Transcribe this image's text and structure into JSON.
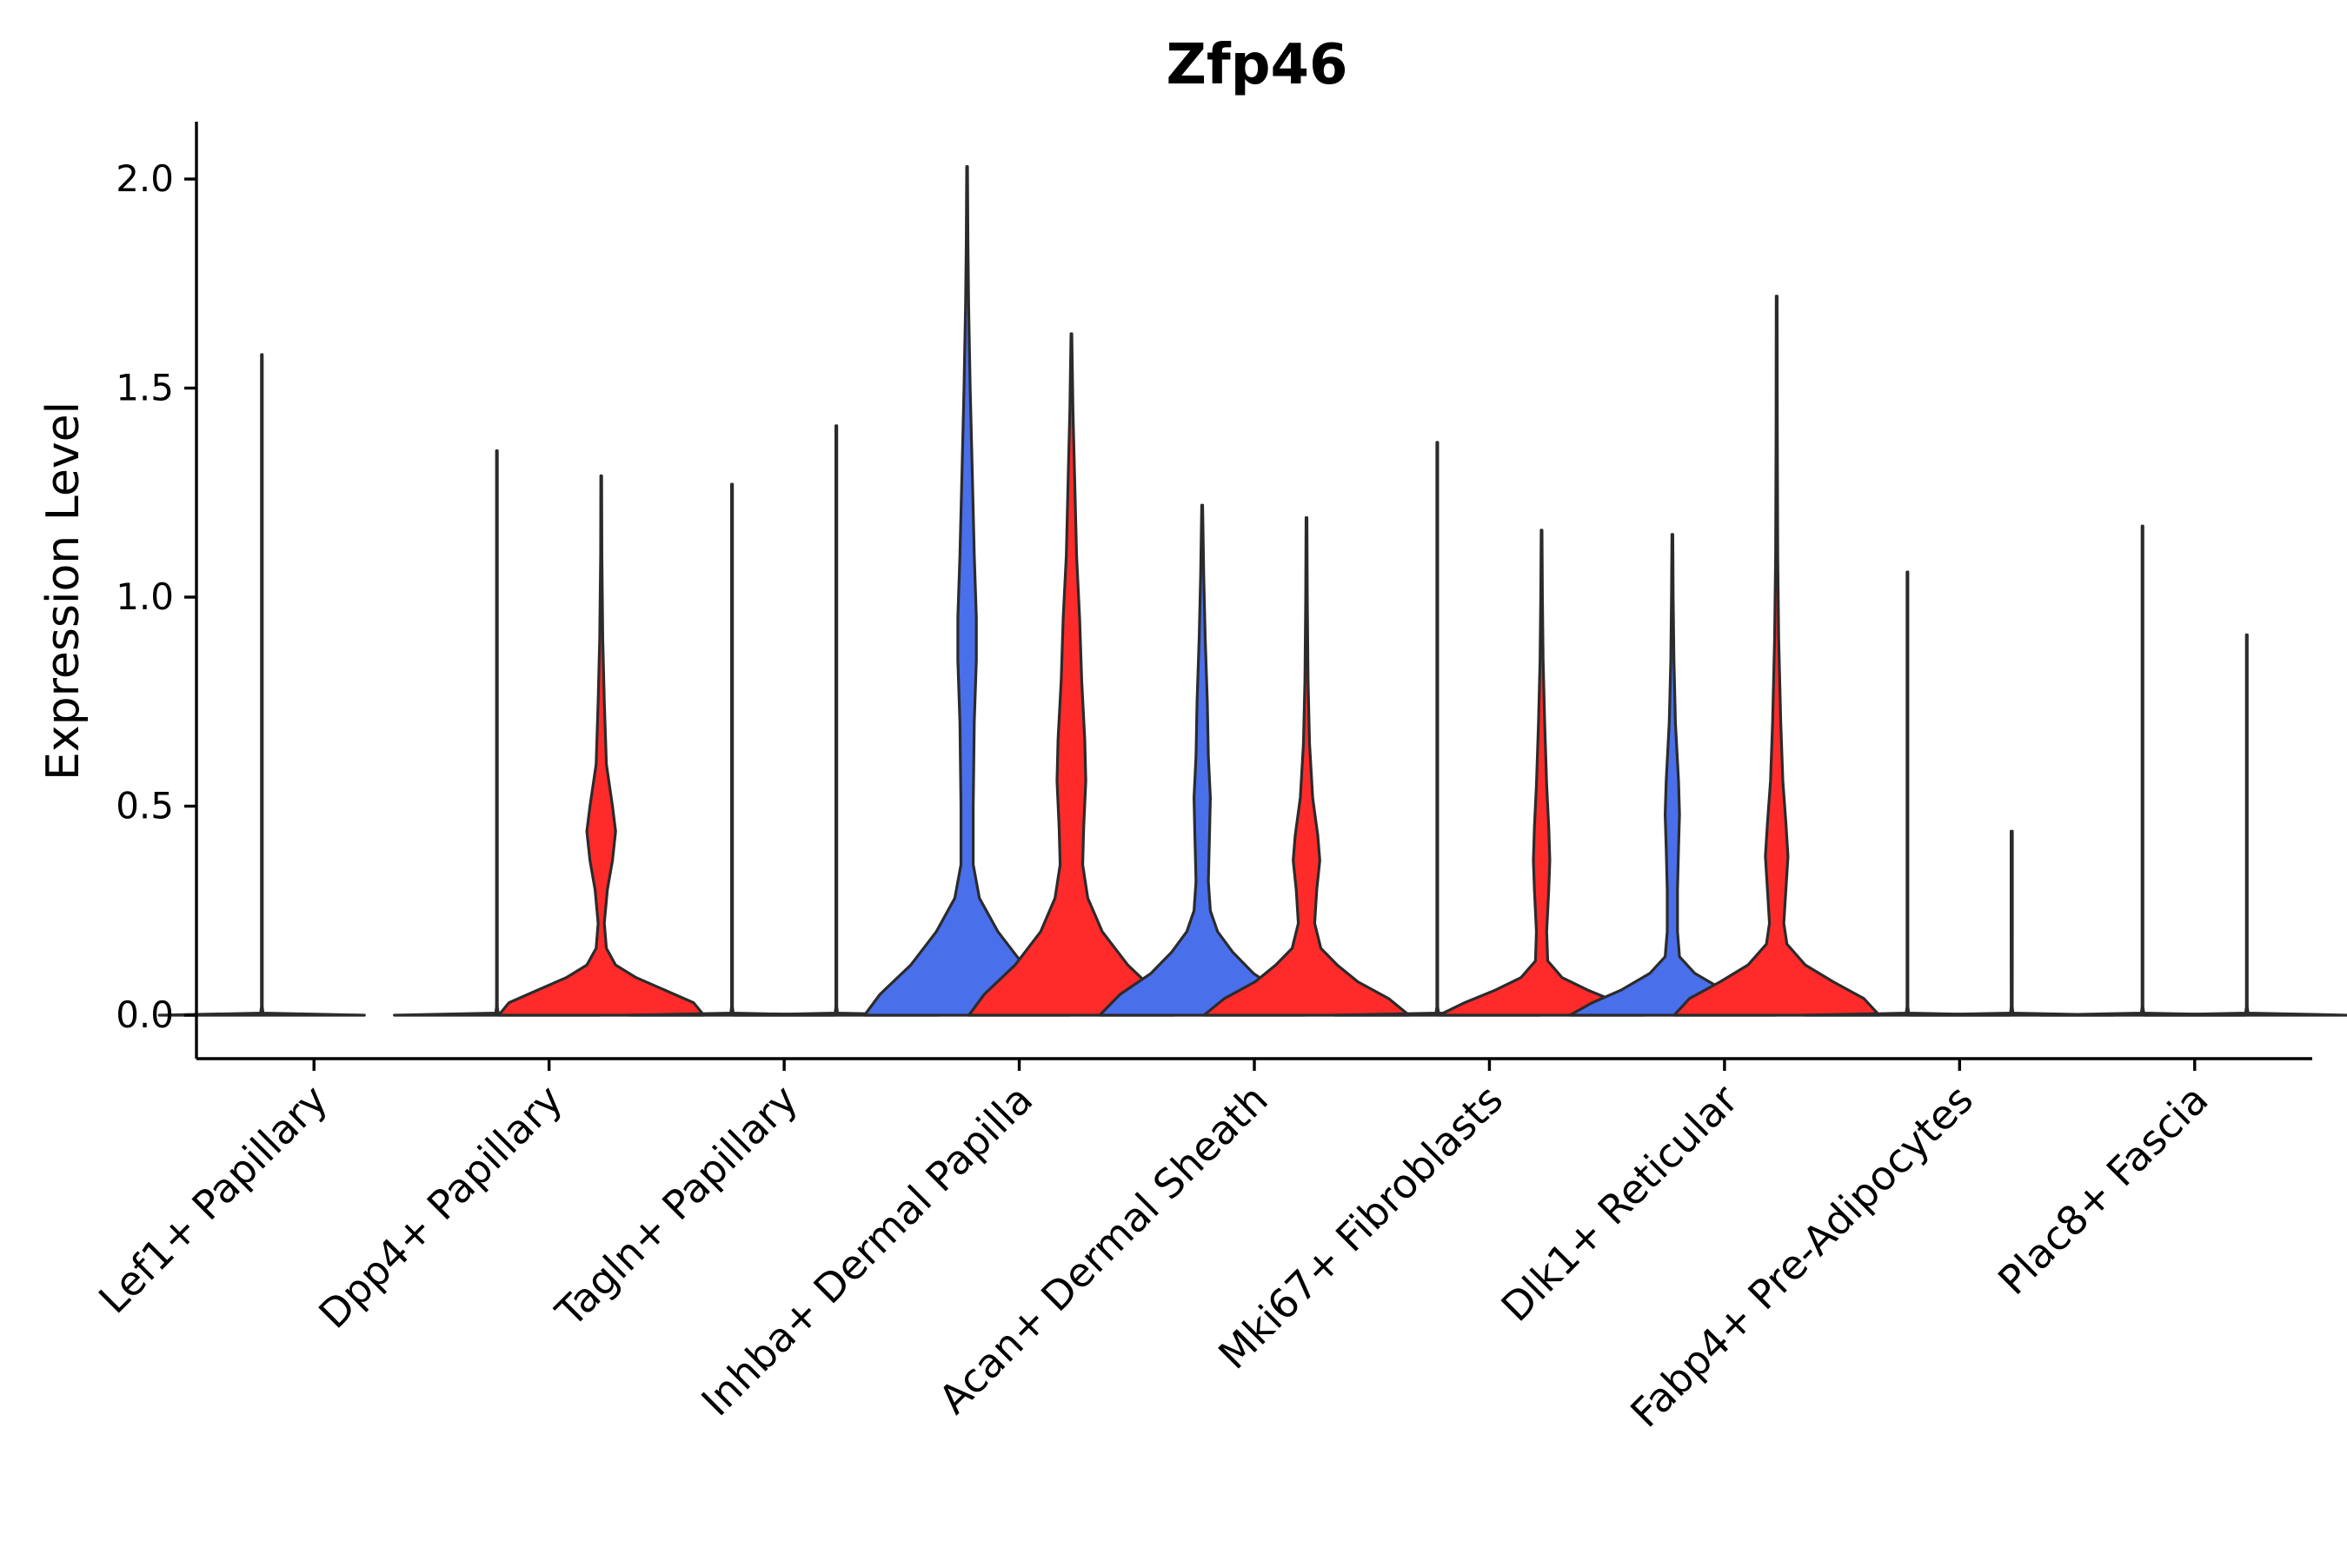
{
  "chart_data": {
    "type": "violin",
    "title": "Zfp46",
    "xlabel": "",
    "ylabel": "Expression Level",
    "ylim": [
      -0.1,
      2.14
    ],
    "yticks": [
      0.0,
      0.5,
      1.0,
      1.5,
      2.0
    ],
    "ytick_labels": [
      "0.0",
      "0.5",
      "1.0",
      "1.5",
      "2.0"
    ],
    "grid": false,
    "legend": "none",
    "series_colors": {
      "group1": "#4A6FEB",
      "group2": "#FF2B2B"
    },
    "categories": [
      "Lef1+ Papillary",
      "Dpp4+ Papillary",
      "Tagln+ Papillary",
      "Inhba+ Dermal Papilla",
      "Acan+ Dermal Sheath",
      "Mki67+ Fibroblasts",
      "Dlk1+ Reticular",
      "Fabp4+ Pre-Adipocytes",
      "Plac8+ Fascia"
    ],
    "violins": [
      {
        "category": "Lef1+ Papillary",
        "group": "group1",
        "max": 1.58,
        "shape": [
          [
            0,
            1
          ],
          [
            0.005,
            0.012
          ],
          [
            0.02,
            0.004
          ],
          [
            0.1,
            0.004
          ],
          [
            0.5,
            0.004
          ],
          [
            1.0,
            0.004
          ],
          [
            1.58,
            0.004
          ]
        ]
      },
      {
        "category": "Dpp4+ Papillary",
        "group": "group1",
        "max": 1.35,
        "shape": [
          [
            0,
            1
          ],
          [
            0.005,
            0.012
          ],
          [
            0.02,
            0.004
          ],
          [
            0.1,
            0.004
          ],
          [
            0.6,
            0.004
          ],
          [
            1.35,
            0.004
          ]
        ]
      },
      {
        "category": "Dpp4+ Papillary",
        "group": "group2",
        "max": 1.29,
        "shape": [
          [
            0,
            1
          ],
          [
            0.03,
            0.9
          ],
          [
            0.06,
            0.62
          ],
          [
            0.09,
            0.34
          ],
          [
            0.12,
            0.14
          ],
          [
            0.16,
            0.05
          ],
          [
            0.22,
            0.03
          ],
          [
            0.3,
            0.06
          ],
          [
            0.37,
            0.11
          ],
          [
            0.44,
            0.14
          ],
          [
            0.5,
            0.11
          ],
          [
            0.6,
            0.05
          ],
          [
            0.75,
            0.03
          ],
          [
            0.9,
            0.015
          ],
          [
            1.1,
            0.006
          ],
          [
            1.29,
            0.004
          ]
        ]
      },
      {
        "category": "Tagln+ Papillary",
        "group": "group1",
        "max": 1.27,
        "shape": [
          [
            0,
            1
          ],
          [
            0.005,
            0.012
          ],
          [
            0.02,
            0.004
          ],
          [
            0.6,
            0.004
          ],
          [
            1.27,
            0.004
          ]
        ]
      },
      {
        "category": "Tagln+ Papillary",
        "group": "group2",
        "max": 1.41,
        "shape": [
          [
            0,
            1
          ],
          [
            0.005,
            0.012
          ],
          [
            0.02,
            0.004
          ],
          [
            0.7,
            0.004
          ],
          [
            1.41,
            0.004
          ]
        ]
      },
      {
        "category": "Inhba+ Dermal Papilla",
        "group": "group1",
        "max": 2.03,
        "shape": [
          [
            0,
            1
          ],
          [
            0.05,
            0.85
          ],
          [
            0.12,
            0.55
          ],
          [
            0.2,
            0.3
          ],
          [
            0.28,
            0.12
          ],
          [
            0.36,
            0.06
          ],
          [
            0.5,
            0.06
          ],
          [
            0.7,
            0.07
          ],
          [
            0.85,
            0.09
          ],
          [
            0.95,
            0.09
          ],
          [
            1.1,
            0.07
          ],
          [
            1.3,
            0.05
          ],
          [
            1.5,
            0.03
          ],
          [
            1.7,
            0.015
          ],
          [
            1.85,
            0.008
          ],
          [
            2.03,
            0.004
          ]
        ]
      },
      {
        "category": "Inhba+ Dermal Papilla",
        "group": "group2",
        "max": 1.63,
        "shape": [
          [
            0,
            1
          ],
          [
            0.05,
            0.85
          ],
          [
            0.12,
            0.55
          ],
          [
            0.2,
            0.3
          ],
          [
            0.28,
            0.16
          ],
          [
            0.36,
            0.11
          ],
          [
            0.45,
            0.12
          ],
          [
            0.56,
            0.14
          ],
          [
            0.66,
            0.13
          ],
          [
            0.8,
            0.1
          ],
          [
            0.95,
            0.08
          ],
          [
            1.1,
            0.05
          ],
          [
            1.3,
            0.03
          ],
          [
            1.45,
            0.015
          ],
          [
            1.63,
            0.004
          ]
        ]
      },
      {
        "category": "Acan+ Dermal Sheath",
        "group": "group1",
        "max": 1.22,
        "shape": [
          [
            0,
            1
          ],
          [
            0.05,
            0.8
          ],
          [
            0.1,
            0.5
          ],
          [
            0.15,
            0.3
          ],
          [
            0.2,
            0.15
          ],
          [
            0.25,
            0.08
          ],
          [
            0.32,
            0.06
          ],
          [
            0.42,
            0.07
          ],
          [
            0.52,
            0.08
          ],
          [
            0.62,
            0.06
          ],
          [
            0.75,
            0.05
          ],
          [
            0.9,
            0.03
          ],
          [
            1.05,
            0.015
          ],
          [
            1.22,
            0.004
          ]
        ]
      },
      {
        "category": "Acan+ Dermal Sheath",
        "group": "group2",
        "max": 1.19,
        "shape": [
          [
            0,
            1
          ],
          [
            0.04,
            0.8
          ],
          [
            0.08,
            0.5
          ],
          [
            0.12,
            0.3
          ],
          [
            0.16,
            0.14
          ],
          [
            0.22,
            0.08
          ],
          [
            0.3,
            0.1
          ],
          [
            0.37,
            0.13
          ],
          [
            0.43,
            0.11
          ],
          [
            0.52,
            0.06
          ],
          [
            0.65,
            0.03
          ],
          [
            0.8,
            0.015
          ],
          [
            1.0,
            0.008
          ],
          [
            1.19,
            0.004
          ]
        ]
      },
      {
        "category": "Mki67+ Fibroblasts",
        "group": "group1",
        "max": 1.37,
        "shape": [
          [
            0,
            1
          ],
          [
            0.005,
            0.012
          ],
          [
            0.02,
            0.004
          ],
          [
            0.7,
            0.004
          ],
          [
            1.37,
            0.004
          ]
        ]
      },
      {
        "category": "Mki67+ Fibroblasts",
        "group": "group2",
        "max": 1.16,
        "shape": [
          [
            0,
            1
          ],
          [
            0.03,
            0.75
          ],
          [
            0.06,
            0.45
          ],
          [
            0.09,
            0.2
          ],
          [
            0.13,
            0.06
          ],
          [
            0.2,
            0.05
          ],
          [
            0.3,
            0.07
          ],
          [
            0.37,
            0.08
          ],
          [
            0.45,
            0.07
          ],
          [
            0.55,
            0.05
          ],
          [
            0.7,
            0.03
          ],
          [
            0.85,
            0.015
          ],
          [
            1.0,
            0.008
          ],
          [
            1.16,
            0.004
          ]
        ]
      },
      {
        "category": "Dlk1+ Reticular",
        "group": "group1",
        "max": 1.15,
        "shape": [
          [
            0,
            1
          ],
          [
            0.03,
            0.78
          ],
          [
            0.06,
            0.5
          ],
          [
            0.1,
            0.22
          ],
          [
            0.14,
            0.07
          ],
          [
            0.2,
            0.05
          ],
          [
            0.3,
            0.05
          ],
          [
            0.4,
            0.06
          ],
          [
            0.48,
            0.07
          ],
          [
            0.56,
            0.06
          ],
          [
            0.7,
            0.03
          ],
          [
            0.85,
            0.015
          ],
          [
            1.0,
            0.008
          ],
          [
            1.15,
            0.004
          ]
        ]
      },
      {
        "category": "Dlk1+ Reticular",
        "group": "group2",
        "max": 1.72,
        "shape": [
          [
            0,
            1
          ],
          [
            0.04,
            0.85
          ],
          [
            0.08,
            0.55
          ],
          [
            0.12,
            0.28
          ],
          [
            0.17,
            0.1
          ],
          [
            0.22,
            0.07
          ],
          [
            0.3,
            0.09
          ],
          [
            0.38,
            0.11
          ],
          [
            0.46,
            0.09
          ],
          [
            0.56,
            0.06
          ],
          [
            0.7,
            0.04
          ],
          [
            0.9,
            0.02
          ],
          [
            1.1,
            0.01
          ],
          [
            1.4,
            0.006
          ],
          [
            1.72,
            0.004
          ]
        ]
      },
      {
        "category": "Fabp4+ Pre-Adipocytes",
        "group": "group1",
        "max": 1.06,
        "shape": [
          [
            0,
            1
          ],
          [
            0.005,
            0.012
          ],
          [
            0.02,
            0.004
          ],
          [
            0.5,
            0.004
          ],
          [
            1.06,
            0.004
          ]
        ]
      },
      {
        "category": "Fabp4+ Pre-Adipocytes",
        "group": "group2",
        "max": 0.44,
        "shape": [
          [
            0,
            1
          ],
          [
            0.005,
            0.012
          ],
          [
            0.02,
            0.005
          ],
          [
            0.2,
            0.006
          ],
          [
            0.44,
            0.006
          ]
        ]
      },
      {
        "category": "Plac8+ Fascia",
        "group": "group1",
        "max": 1.17,
        "shape": [
          [
            0,
            1
          ],
          [
            0.005,
            0.012
          ],
          [
            0.02,
            0.004
          ],
          [
            0.6,
            0.004
          ],
          [
            1.17,
            0.004
          ]
        ]
      },
      {
        "category": "Plac8+ Fascia",
        "group": "group2",
        "max": 0.91,
        "shape": [
          [
            0,
            1
          ],
          [
            0.005,
            0.012
          ],
          [
            0.02,
            0.004
          ],
          [
            0.5,
            0.004
          ],
          [
            0.91,
            0.004
          ]
        ]
      }
    ]
  }
}
